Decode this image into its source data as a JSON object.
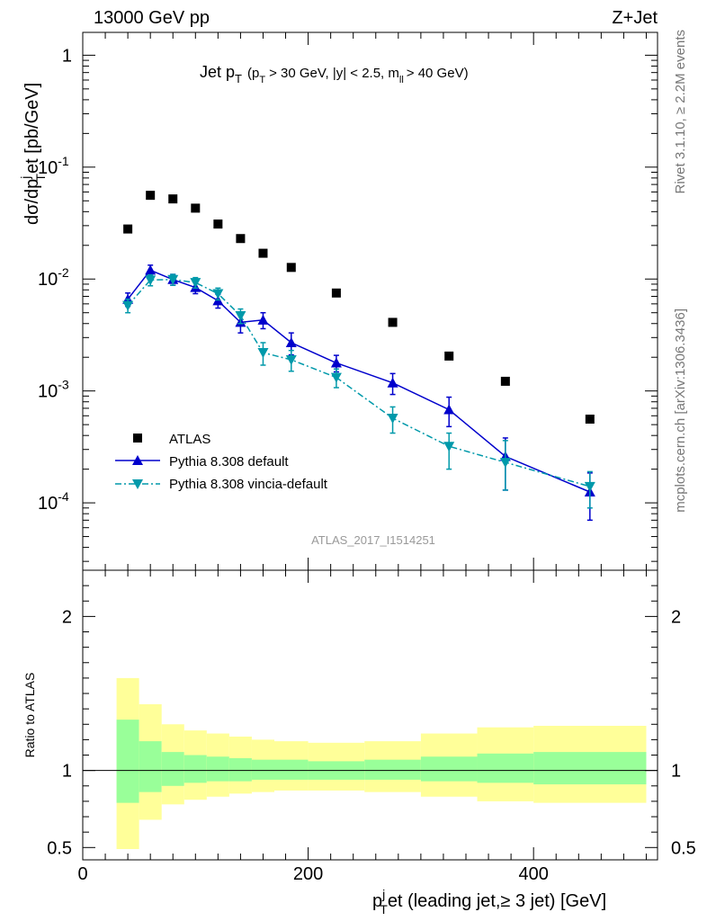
{
  "header": {
    "energy": "13000 GeV pp",
    "process": "Z+Jet"
  },
  "side": {
    "rivet": "Rivet 3.1.10, ≥ 2.2M events",
    "mcplots": "mcplots.cern.ch [arXiv:1306.3436]"
  },
  "chart_data": [
    {
      "type": "scatter",
      "title_main": "Jet p",
      "title_sub": "T",
      "title_cond": "(p",
      "title_cond_sub": "T",
      "title_cond_rest": "> 30 GeV, |y| < 2.5, m",
      "title_cond_sub2": "ll",
      "title_cond_end": "> 40 GeV)",
      "ylabel": "dσ/dp",
      "ylabel_sup": "j",
      "ylabel_sub": "T",
      "ylabel_rest": "et [pb/GeV]",
      "yscale": "log",
      "ylim": [
        2.5e-05,
        1.6
      ],
      "xlim": [
        0,
        510
      ],
      "ytick_labels": [
        {
          "value": 1,
          "label": "1"
        },
        {
          "value": 0.1,
          "base": "10",
          "exp": "-1"
        },
        {
          "value": 0.01,
          "base": "10",
          "exp": "-2"
        },
        {
          "value": 0.001,
          "base": "10",
          "exp": "-3"
        },
        {
          "value": 0.0001,
          "base": "10",
          "exp": "-4"
        }
      ],
      "watermark": "ATLAS_2017_I1514251",
      "legend_position": "bottom-left",
      "series": [
        {
          "name": "ATLAS",
          "color": "#000000",
          "marker": "square",
          "x": [
            40,
            60,
            80,
            100,
            120,
            140,
            160,
            185,
            225,
            275,
            325,
            375,
            450
          ],
          "y": [
            0.028,
            0.056,
            0.052,
            0.043,
            0.031,
            0.023,
            0.017,
            0.0127,
            0.0075,
            0.0041,
            0.00205,
            0.00122,
            0.00056
          ]
        },
        {
          "name": "Pythia 8.308 default",
          "color": "#0000cc",
          "marker": "triangle-up",
          "line": "solid",
          "x": [
            40,
            60,
            80,
            100,
            120,
            140,
            160,
            185,
            225,
            275,
            325,
            375,
            450
          ],
          "y": [
            0.0066,
            0.012,
            0.0099,
            0.0084,
            0.0064,
            0.0041,
            0.0043,
            0.0027,
            0.00178,
            0.00118,
            0.00068,
            0.00026,
            0.000125
          ],
          "err_up": [
            0.0009,
            0.0013,
            0.0011,
            0.001,
            0.0009,
            0.0008,
            0.0007,
            0.0006,
            0.0003,
            0.00025,
            0.0002,
            0.00012,
            6e-05
          ],
          "err_down": [
            0.0009,
            0.0013,
            0.0011,
            0.001,
            0.0009,
            0.0008,
            0.0007,
            0.0006,
            0.0003,
            0.00025,
            0.0002,
            0.00013,
            5.5e-05
          ]
        },
        {
          "name": "Pythia 8.308 vincia-default",
          "color": "#0099aa",
          "marker": "triangle-down",
          "line": "dashdot",
          "x": [
            40,
            60,
            80,
            100,
            120,
            140,
            160,
            185,
            225,
            275,
            325,
            375,
            450
          ],
          "y": [
            0.0058,
            0.0098,
            0.0099,
            0.0093,
            0.0074,
            0.0047,
            0.0022,
            0.0019,
            0.00132,
            0.00057,
            0.00032,
            0.00023,
            0.00014
          ],
          "err_up": [
            0.0008,
            0.0011,
            0.0011,
            0.001,
            0.0009,
            0.0007,
            0.0005,
            0.0004,
            0.00025,
            0.00015,
            0.0001,
            0.00013,
            5e-05
          ],
          "err_down": [
            0.0008,
            0.0011,
            0.0011,
            0.001,
            0.0009,
            0.0007,
            0.0005,
            0.0004,
            0.00025,
            0.00015,
            0.00012,
            0.0001,
            5e-05
          ]
        }
      ]
    },
    {
      "type": "area",
      "ylabel": "Ratio to ATLAS",
      "xlabel": "p",
      "xlabel_sup": "j",
      "xlabel_sub": "T",
      "xlabel_rest": "et (leading jet,≥ 3 jet) [GeV]",
      "xlim": [
        0,
        510
      ],
      "ylim": [
        0.42,
        2.3
      ],
      "xticks": [
        0,
        200,
        400
      ],
      "yticks": [
        0.5,
        1,
        2
      ],
      "bins": [
        {
          "x0": 30,
          "x1": 50,
          "stat_lo": 0.79,
          "stat_hi": 1.33,
          "tot_lo": 0.49,
          "tot_hi": 1.6
        },
        {
          "x0": 50,
          "x1": 70,
          "stat_lo": 0.86,
          "stat_hi": 1.19,
          "tot_lo": 0.68,
          "tot_hi": 1.43
        },
        {
          "x0": 70,
          "x1": 90,
          "stat_lo": 0.9,
          "stat_hi": 1.12,
          "tot_lo": 0.78,
          "tot_hi": 1.3
        },
        {
          "x0": 90,
          "x1": 110,
          "stat_lo": 0.92,
          "stat_hi": 1.1,
          "tot_lo": 0.81,
          "tot_hi": 1.26
        },
        {
          "x0": 110,
          "x1": 130,
          "stat_lo": 0.93,
          "stat_hi": 1.09,
          "tot_lo": 0.83,
          "tot_hi": 1.24
        },
        {
          "x0": 130,
          "x1": 150,
          "stat_lo": 0.93,
          "stat_hi": 1.08,
          "tot_lo": 0.85,
          "tot_hi": 1.22
        },
        {
          "x0": 150,
          "x1": 170,
          "stat_lo": 0.94,
          "stat_hi": 1.07,
          "tot_lo": 0.86,
          "tot_hi": 1.2
        },
        {
          "x0": 170,
          "x1": 200,
          "stat_lo": 0.94,
          "stat_hi": 1.07,
          "tot_lo": 0.87,
          "tot_hi": 1.19
        },
        {
          "x0": 200,
          "x1": 250,
          "stat_lo": 0.94,
          "stat_hi": 1.06,
          "tot_lo": 0.87,
          "tot_hi": 1.18
        },
        {
          "x0": 250,
          "x1": 300,
          "stat_lo": 0.94,
          "stat_hi": 1.07,
          "tot_lo": 0.86,
          "tot_hi": 1.19
        },
        {
          "x0": 300,
          "x1": 350,
          "stat_lo": 0.93,
          "stat_hi": 1.09,
          "tot_lo": 0.83,
          "tot_hi": 1.24
        },
        {
          "x0": 350,
          "x1": 400,
          "stat_lo": 0.92,
          "stat_hi": 1.11,
          "tot_lo": 0.8,
          "tot_hi": 1.28
        },
        {
          "x0": 400,
          "x1": 500,
          "stat_lo": 0.91,
          "stat_hi": 1.12,
          "tot_lo": 0.79,
          "tot_hi": 1.29
        }
      ],
      "stat_color": "#99ff99",
      "tot_color": "#ffff99"
    }
  ]
}
